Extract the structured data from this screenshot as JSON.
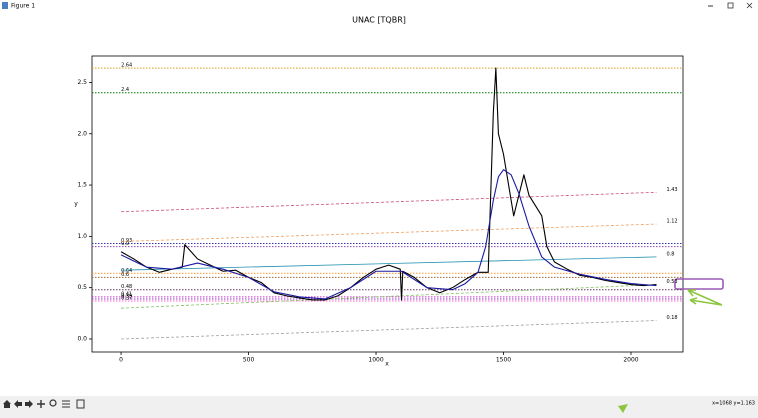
{
  "window": {
    "title": "Figure 1"
  },
  "status": "x=1068  y=1.163",
  "chart_data": {
    "type": "line",
    "title": "UNAC [TQBR]",
    "x_label": "x",
    "y_label": "y",
    "xlim": [
      -114,
      2204
    ],
    "ylim": [
      -0.127,
      2.758
    ],
    "xticks": [
      0,
      500,
      1000,
      1500,
      2000
    ],
    "yticks": [
      {
        "value": 0,
        "label": "0.0"
      },
      0.5,
      {
        "value": 1,
        "label": "1.0"
      },
      1.5,
      {
        "value": 2,
        "label": "2.0"
      },
      2.5
    ],
    "series": [
      {
        "color": "#000000",
        "x": [
          0,
          50,
          100,
          150,
          200,
          240,
          250,
          300,
          350,
          400,
          450,
          500,
          550,
          600,
          650,
          700,
          750,
          800,
          850,
          900,
          950,
          1000,
          1050,
          1095,
          1100,
          1105,
          1150,
          1200,
          1250,
          1300,
          1350,
          1400,
          1440,
          1460,
          1470,
          1480,
          1500,
          1520,
          1540,
          1560,
          1580,
          1600,
          1650,
          1670,
          1700,
          1750,
          1800,
          1850,
          1900,
          1950,
          2000,
          2050,
          2100
        ],
        "values": [
          0.85,
          0.78,
          0.7,
          0.65,
          0.68,
          0.7,
          0.92,
          0.78,
          0.72,
          0.66,
          0.67,
          0.6,
          0.55,
          0.45,
          0.42,
          0.4,
          0.38,
          0.38,
          0.42,
          0.5,
          0.6,
          0.68,
          0.72,
          0.68,
          0.38,
          0.66,
          0.6,
          0.5,
          0.45,
          0.5,
          0.58,
          0.65,
          0.65,
          2.2,
          2.64,
          2.0,
          1.8,
          1.5,
          1.2,
          1.4,
          1.6,
          1.4,
          1.2,
          0.9,
          0.75,
          0.68,
          0.62,
          0.6,
          0.57,
          0.55,
          0.53,
          0.52,
          0.53
        ]
      },
      {
        "color": "#1a1aa0",
        "x": [
          0,
          100,
          200,
          300,
          400,
          500,
          600,
          700,
          800,
          900,
          1000,
          1100,
          1200,
          1300,
          1350,
          1400,
          1430,
          1460,
          1480,
          1500,
          1530,
          1560,
          1600,
          1650,
          1700,
          1800,
          1900,
          2000,
          2100
        ],
        "values": [
          0.82,
          0.7,
          0.68,
          0.74,
          0.68,
          0.6,
          0.46,
          0.41,
          0.39,
          0.5,
          0.66,
          0.66,
          0.5,
          0.48,
          0.54,
          0.65,
          0.9,
          1.35,
          1.58,
          1.65,
          1.6,
          1.42,
          1.1,
          0.8,
          0.7,
          0.63,
          0.58,
          0.54,
          0.52
        ]
      }
    ],
    "trend_lines": [
      {
        "color": "#d05070",
        "dash": true,
        "x": [
          0,
          2100
        ],
        "values": [
          1.24,
          1.43
        ]
      },
      {
        "color": "#f0a060",
        "dash": true,
        "x": [
          0,
          2100
        ],
        "values": [
          0.95,
          1.12
        ]
      },
      {
        "color": "#2090b0",
        "dash": false,
        "x": [
          0,
          2100
        ],
        "values": [
          0.67,
          0.8
        ]
      },
      {
        "color": "#80c060",
        "dash": true,
        "x": [
          0,
          2100
        ],
        "values": [
          0.3,
          0.53
        ]
      },
      {
        "color": "#a0a0a0",
        "dash": true,
        "x": [
          0,
          2100
        ],
        "values": [
          0,
          0.18
        ]
      }
    ],
    "hlines": [
      {
        "value": 2.64,
        "color": "#d4a017"
      },
      {
        "value": 2.4,
        "color": "#008000"
      },
      {
        "value": 0.93,
        "color": "#3333aa"
      },
      {
        "value": 0.9,
        "color": "#8844aa"
      },
      {
        "value": 0.64,
        "color": "#ff9933"
      },
      {
        "value": 0.6,
        "color": "#996633"
      },
      {
        "value": 0.48,
        "color": "#663366"
      },
      {
        "value": 0.41,
        "color": "#cc33cc"
      },
      {
        "value": 0.39,
        "color": "#9933cc"
      },
      {
        "value": 0.37,
        "color": "#ff66cc"
      }
    ]
  }
}
